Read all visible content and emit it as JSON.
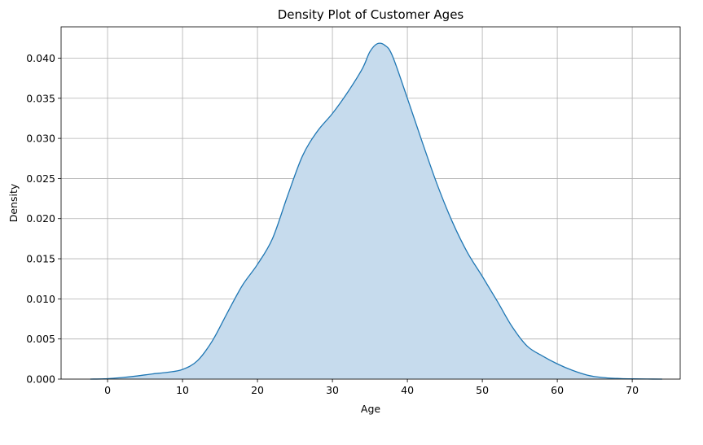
{
  "chart_data": {
    "type": "area",
    "title": "Density Plot of Customer Ages",
    "xlabel": "Age",
    "ylabel": "Density",
    "xlim": [
      -6.2,
      76.4
    ],
    "ylim": [
      0,
      0.0439
    ],
    "grid": true,
    "xticks": [
      0,
      10,
      20,
      30,
      40,
      50,
      60,
      70
    ],
    "yticks": [
      0.0,
      0.005,
      0.01,
      0.015,
      0.02,
      0.025,
      0.03,
      0.035,
      0.04
    ],
    "ytick_labels": [
      "0.000",
      "0.005",
      "0.010",
      "0.015",
      "0.020",
      "0.025",
      "0.030",
      "0.035",
      "0.040"
    ],
    "series": [
      {
        "color": "#1f77b4",
        "fill_color": "#c6dbed",
        "x": [
          -2.3,
          0,
          2,
          4,
          6,
          8,
          10,
          12,
          14,
          16,
          18,
          20,
          22,
          24,
          26,
          28,
          30,
          32,
          34,
          35,
          36,
          37,
          38,
          40,
          42,
          44,
          46,
          48,
          50,
          52,
          54,
          56,
          58,
          60,
          62,
          64,
          66,
          68,
          70,
          72,
          74
        ],
        "y": [
          0.0,
          5e-05,
          0.0002,
          0.0004,
          0.00065,
          0.00085,
          0.0012,
          0.0023,
          0.0048,
          0.0083,
          0.0117,
          0.0143,
          0.0175,
          0.0228,
          0.0278,
          0.0309,
          0.0331,
          0.0357,
          0.0387,
          0.0408,
          0.0418,
          0.0416,
          0.0403,
          0.035,
          0.0295,
          0.0242,
          0.0196,
          0.0158,
          0.0128,
          0.0097,
          0.0065,
          0.0041,
          0.0029,
          0.0019,
          0.0011,
          0.0005,
          0.0002,
          8e-05,
          3e-05,
          1e-05,
          0.0
        ]
      }
    ]
  }
}
